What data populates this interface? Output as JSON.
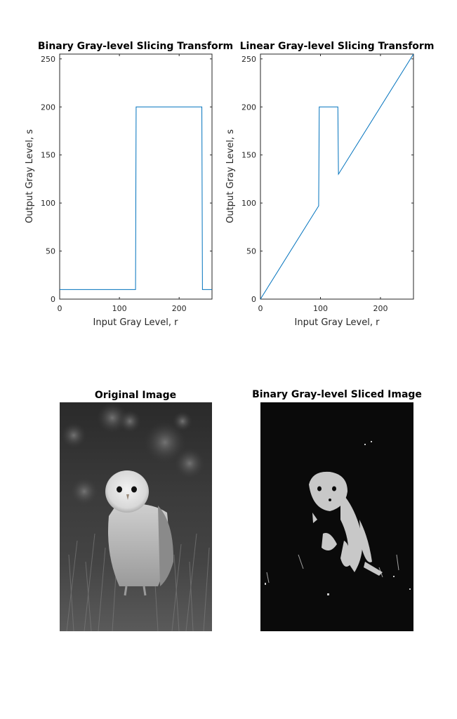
{
  "chart_data": [
    {
      "type": "line",
      "title": "Binary Gray-level Slicing Transform",
      "xlabel": "Input Gray Level, r",
      "ylabel": "Output Gray Level, s",
      "xlim": [
        0,
        255
      ],
      "ylim": [
        0,
        255
      ],
      "xticks": [
        0,
        100,
        200
      ],
      "yticks": [
        0,
        50,
        100,
        150,
        200,
        250
      ],
      "grid": false,
      "series_color": "#0072BD",
      "x": [
        0,
        127,
        128,
        238,
        239,
        255
      ],
      "y": [
        10,
        10,
        200,
        200,
        10,
        10
      ]
    },
    {
      "type": "line",
      "title": "Linear Gray-level Slicing Transform",
      "xlabel": "Input Gray Level, r",
      "ylabel": "Output Gray Level, s",
      "xlim": [
        0,
        255
      ],
      "ylim": [
        0,
        255
      ],
      "xticks": [
        0,
        100,
        200
      ],
      "yticks": [
        0,
        50,
        100,
        150,
        200,
        250
      ],
      "grid": false,
      "series_color": "#0072BD",
      "x": [
        0,
        97,
        98,
        129,
        130,
        255
      ],
      "y": [
        0,
        97,
        200,
        200,
        130,
        255
      ]
    }
  ],
  "images": {
    "original": {
      "title": "Original Image",
      "subject": "barn-owl-photo"
    },
    "sliced": {
      "title": "Binary Gray-level Sliced Image",
      "subject": "barn-owl-binary-sliced"
    }
  }
}
